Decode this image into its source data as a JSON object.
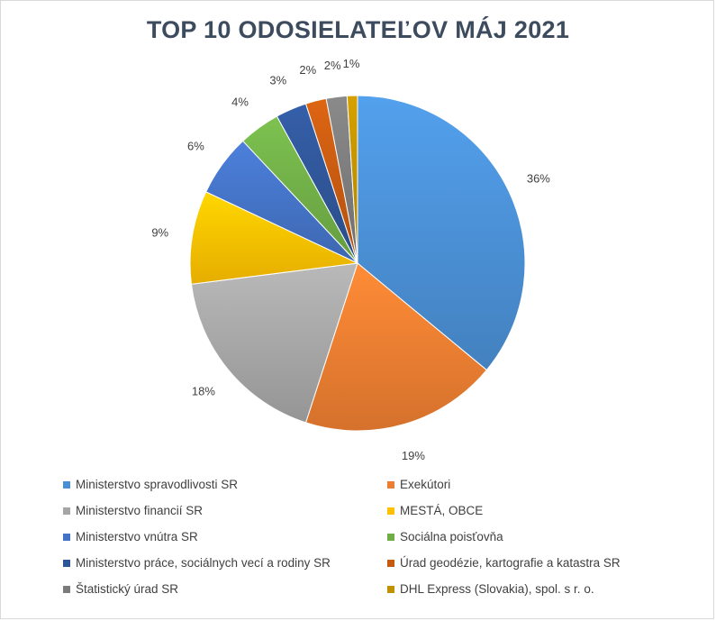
{
  "chart_data": {
    "type": "pie",
    "title": "TOP 10 ODOSIELATEĽOV MÁJ 2021",
    "legend_position": "bottom",
    "slices": [
      {
        "label": "Ministerstvo spravodlivosti SR",
        "value": 36,
        "display": "36%",
        "color": "#4a8fd4"
      },
      {
        "label": "Exekútori",
        "value": 19,
        "display": "19%",
        "color": "#ed7d31"
      },
      {
        "label": "Ministerstvo financií SR",
        "value": 18,
        "display": "18%",
        "color": "#a5a5a5"
      },
      {
        "label": "MESTÁ, OBCE",
        "value": 9,
        "display": "9%",
        "color": "#ffc000"
      },
      {
        "label": "Ministerstvo vnútra SR",
        "value": 6,
        "display": "6%",
        "color": "#4472c4"
      },
      {
        "label": "Sociálna poisťovňa",
        "value": 4,
        "display": "4%",
        "color": "#70ad47"
      },
      {
        "label": "Ministerstvo práce, sociálnych vecí a rodiny SR",
        "value": 3,
        "display": "3%",
        "color": "#2f5597"
      },
      {
        "label": "Úrad geodézie, kartografie a katastra SR",
        "value": 2,
        "display": "2%",
        "color": "#c55a11"
      },
      {
        "label": "Štatistický úrad SR",
        "value": 2,
        "display": "2%",
        "color": "#7b7b7b"
      },
      {
        "label": "DHL Express (Slovakia), spol. s r. o.",
        "value": 1,
        "display": "1%",
        "color": "#bf9000"
      }
    ]
  }
}
